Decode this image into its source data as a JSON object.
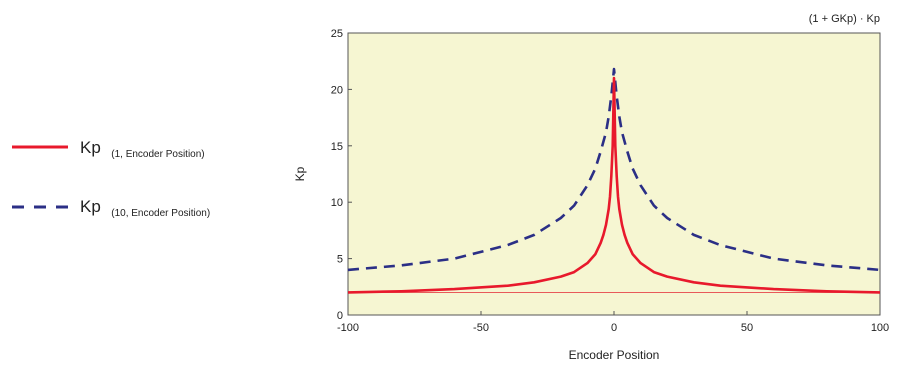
{
  "chart_data": {
    "type": "line",
    "annotation": "(1 + GKp) · Kp",
    "xlabel": "Encoder Position",
    "ylabel": "Kp",
    "xlim": [
      -100,
      100
    ],
    "ylim": [
      0,
      25
    ],
    "x_ticks": [
      "-100",
      "-50",
      "0",
      "50",
      "100"
    ],
    "y_ticks": [
      "0",
      "5",
      "10",
      "15",
      "20",
      "25"
    ],
    "plot_background": "#f6f6d2",
    "baseline": {
      "y": 2,
      "color": "#e85a5a"
    },
    "legend_position": "left",
    "series": [
      {
        "legend_main": "Kp",
        "legend_sub": "(1, Encoder Position)",
        "color": "#e8192c",
        "dash": "solid",
        "x": [
          -100,
          -80,
          -60,
          -40,
          -30,
          -20,
          -15,
          -10,
          -7,
          -5,
          -4,
          -3,
          -2,
          -1.5,
          -1,
          -0.5,
          0,
          0.5,
          1,
          1.5,
          2,
          3,
          4,
          5,
          7,
          10,
          15,
          20,
          30,
          40,
          60,
          80,
          100
        ],
        "y": [
          2.0,
          2.1,
          2.3,
          2.6,
          2.9,
          3.4,
          3.8,
          4.6,
          5.4,
          6.4,
          7.1,
          8.0,
          9.4,
          10.5,
          12.3,
          15.0,
          21.0,
          15.0,
          12.3,
          10.5,
          9.4,
          8.0,
          7.1,
          6.4,
          5.4,
          4.6,
          3.8,
          3.4,
          2.9,
          2.6,
          2.3,
          2.1,
          2.0
        ]
      },
      {
        "legend_main": "Kp",
        "legend_sub": "(10, Encoder Position)",
        "color": "#2b2f86",
        "dash": "dashed",
        "x": [
          -100,
          -80,
          -60,
          -40,
          -30,
          -20,
          -15,
          -10,
          -7,
          -5,
          -3,
          -2,
          -1,
          0,
          1,
          2,
          3,
          5,
          7,
          10,
          15,
          20,
          30,
          40,
          60,
          80,
          100
        ],
        "y": [
          4.0,
          4.4,
          5.0,
          6.2,
          7.1,
          8.6,
          9.7,
          11.5,
          13.0,
          14.5,
          16.2,
          17.6,
          19.4,
          21.8,
          19.4,
          17.6,
          16.2,
          14.5,
          13.0,
          11.5,
          9.7,
          8.6,
          7.1,
          6.2,
          5.0,
          4.4,
          4.0
        ]
      }
    ]
  }
}
